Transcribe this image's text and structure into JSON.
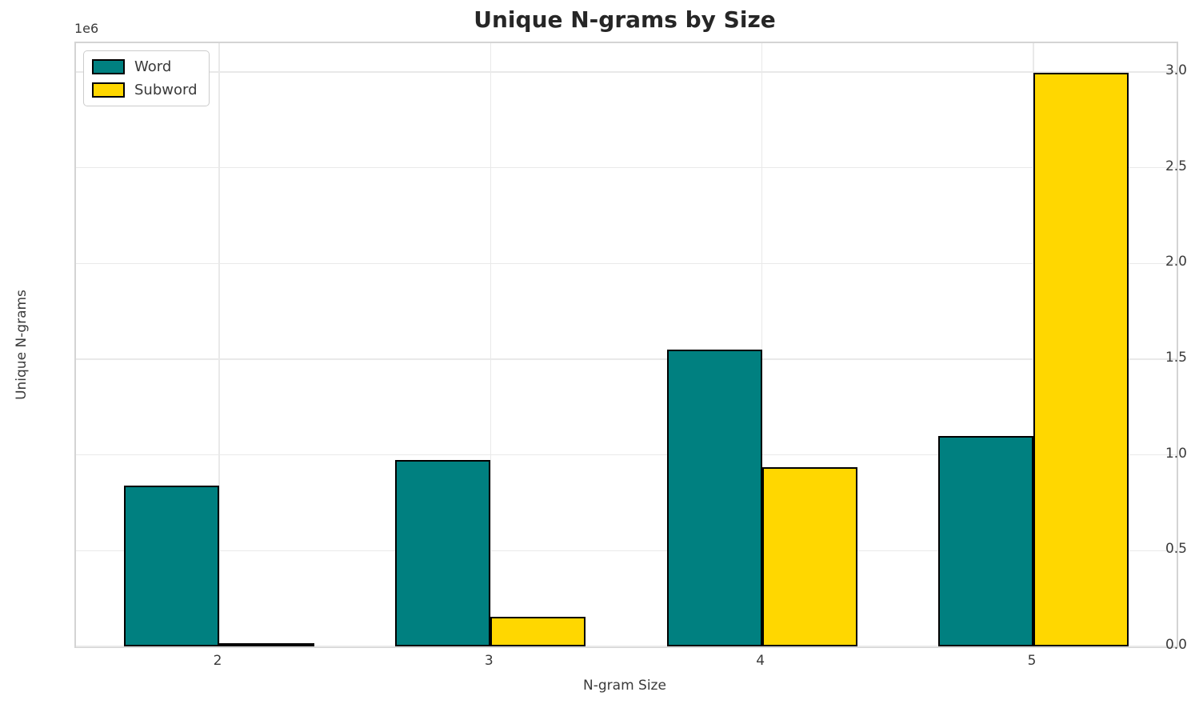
{
  "chart_data": {
    "type": "bar",
    "title": "Unique N-grams by Size",
    "xlabel": "N-gram Size",
    "ylabel": "Unique N-grams",
    "offset_text": "1e6",
    "categories": [
      "2",
      "3",
      "4",
      "5"
    ],
    "series": [
      {
        "name": "Word",
        "color": "#008080",
        "values": [
          840000,
          975000,
          1550000,
          1100000
        ]
      },
      {
        "name": "Subword",
        "color": "#FFD700",
        "values": [
          15000,
          155000,
          935000,
          2995000
        ]
      }
    ],
    "bar_edge_color": "#000000",
    "ylim": [
      0,
      3150000
    ],
    "yticks": {
      "values": [
        0,
        500000,
        1000000,
        1500000,
        2000000,
        2500000,
        3000000
      ],
      "labels": [
        "0.0",
        "0.5",
        "1.0",
        "1.5",
        "2.0",
        "2.5",
        "3.0"
      ]
    },
    "grid": true,
    "legend_position": "upper left"
  }
}
